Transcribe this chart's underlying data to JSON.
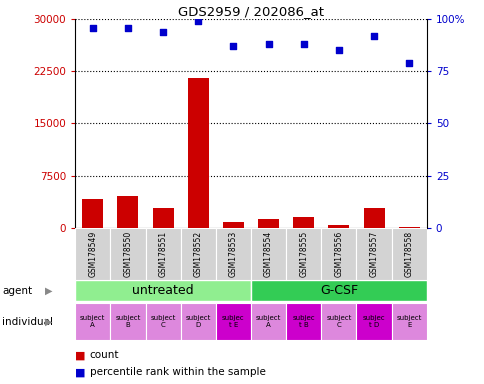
{
  "title": "GDS2959 / 202086_at",
  "samples": [
    "GSM178549",
    "GSM178550",
    "GSM178551",
    "GSM178552",
    "GSM178553",
    "GSM178554",
    "GSM178555",
    "GSM178556",
    "GSM178557",
    "GSM178558"
  ],
  "counts": [
    4200,
    4500,
    2800,
    21500,
    800,
    1200,
    1500,
    400,
    2800,
    100
  ],
  "percentile_ranks": [
    96,
    96,
    94,
    99,
    87,
    88,
    88,
    85,
    92,
    79
  ],
  "ylim_left": [
    0,
    30000
  ],
  "ylim_right": [
    0,
    100
  ],
  "yticks_left": [
    0,
    7500,
    15000,
    22500,
    30000
  ],
  "yticks_right": [
    0,
    25,
    50,
    75,
    100
  ],
  "agent_groups": [
    {
      "label": "untreated",
      "start": 0,
      "end": 5,
      "color": "#90ee90"
    },
    {
      "label": "G-CSF",
      "start": 5,
      "end": 10,
      "color": "#33cc55"
    }
  ],
  "individual_labels": [
    "subject\nA",
    "subject\nB",
    "subject\nC",
    "subject\nD",
    "subjec\nt E",
    "subject\nA",
    "subjec\nt B",
    "subject\nC",
    "subjec\nt D",
    "subject\nE"
  ],
  "individual_colors": [
    "#dd88dd",
    "#dd88dd",
    "#dd88dd",
    "#dd88dd",
    "#cc00cc",
    "#dd88dd",
    "#cc00cc",
    "#dd88dd",
    "#cc00cc",
    "#dd88dd"
  ],
  "bar_color": "#cc0000",
  "dot_color": "#0000cc",
  "tick_color_left": "#cc0000",
  "tick_color_right": "#0000cc",
  "legend_count_color": "#cc0000",
  "legend_pct_color": "#0000cc",
  "sample_bg_color": "#d3d3d3",
  "sample_bg_color_dark": "#c8c8c8"
}
